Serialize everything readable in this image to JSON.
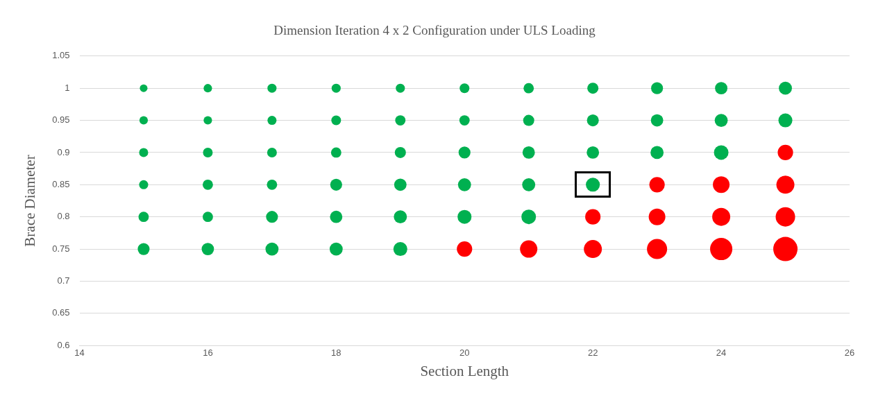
{
  "chart_data": {
    "type": "bubble",
    "title": "Dimension Iteration 4 x 2 Configuration under ULS Loading",
    "xlabel": "Section Length",
    "ylabel": "Brace Diameter",
    "xlim": [
      14,
      26
    ],
    "xticks": [
      14,
      16,
      18,
      20,
      22,
      24,
      26
    ],
    "ylim": [
      0.6,
      1.05
    ],
    "yticks": [
      0.6,
      0.65,
      0.7,
      0.75,
      0.8,
      0.85,
      0.9,
      0.95,
      1,
      1.05
    ],
    "grid": "y",
    "legend": false,
    "series": [
      {
        "color": "#00b050",
        "x": [
          15,
          15,
          15,
          15,
          15,
          15,
          16,
          16,
          16,
          16,
          16,
          16,
          17,
          17,
          17,
          17,
          17,
          17,
          18,
          18,
          18,
          18,
          18,
          18,
          19,
          19,
          19,
          19,
          19,
          19,
          20,
          20,
          20,
          20,
          20,
          21,
          21,
          21,
          21,
          21,
          22,
          22,
          22,
          22,
          23,
          23,
          23,
          24,
          24,
          24,
          25,
          25
        ],
        "values": [
          1,
          0.95,
          0.9,
          0.85,
          0.8,
          0.75,
          1,
          0.95,
          0.9,
          0.85,
          0.8,
          0.75,
          1,
          0.95,
          0.9,
          0.85,
          0.8,
          0.75,
          1,
          0.95,
          0.9,
          0.85,
          0.8,
          0.75,
          1,
          0.95,
          0.9,
          0.85,
          0.8,
          0.75,
          1,
          0.95,
          0.9,
          0.85,
          0.8,
          1,
          0.95,
          0.9,
          0.85,
          0.8,
          1,
          0.95,
          0.9,
          0.85,
          1,
          0.95,
          0.9,
          1,
          0.95,
          0.9,
          1,
          0.95
        ],
        "sizes": [
          0.1,
          0.12,
          0.14,
          0.14,
          0.18,
          0.24,
          0.12,
          0.12,
          0.16,
          0.18,
          0.18,
          0.26,
          0.14,
          0.14,
          0.16,
          0.18,
          0.24,
          0.29,
          0.14,
          0.16,
          0.18,
          0.24,
          0.26,
          0.29,
          0.14,
          0.18,
          0.21,
          0.26,
          0.29,
          0.33,
          0.16,
          0.18,
          0.24,
          0.29,
          0.33,
          0.18,
          0.21,
          0.26,
          0.29,
          0.36,
          0.21,
          0.24,
          0.26,
          0.33,
          0.24,
          0.26,
          0.29,
          0.26,
          0.29,
          0.36,
          0.29,
          0.33
        ]
      },
      {
        "color": "#ff0000",
        "x": [
          20,
          21,
          22,
          22,
          23,
          23,
          23,
          24,
          24,
          24,
          25,
          25,
          25,
          25
        ],
        "values": [
          0.75,
          0.75,
          0.8,
          0.75,
          0.85,
          0.8,
          0.75,
          0.85,
          0.8,
          0.75,
          0.9,
          0.85,
          0.8,
          0.75
        ],
        "sizes": [
          0.4,
          0.51,
          0.4,
          0.55,
          0.4,
          0.47,
          0.69,
          0.47,
          0.55,
          0.84,
          0.4,
          0.55,
          0.64,
          1
        ]
      }
    ]
  }
}
